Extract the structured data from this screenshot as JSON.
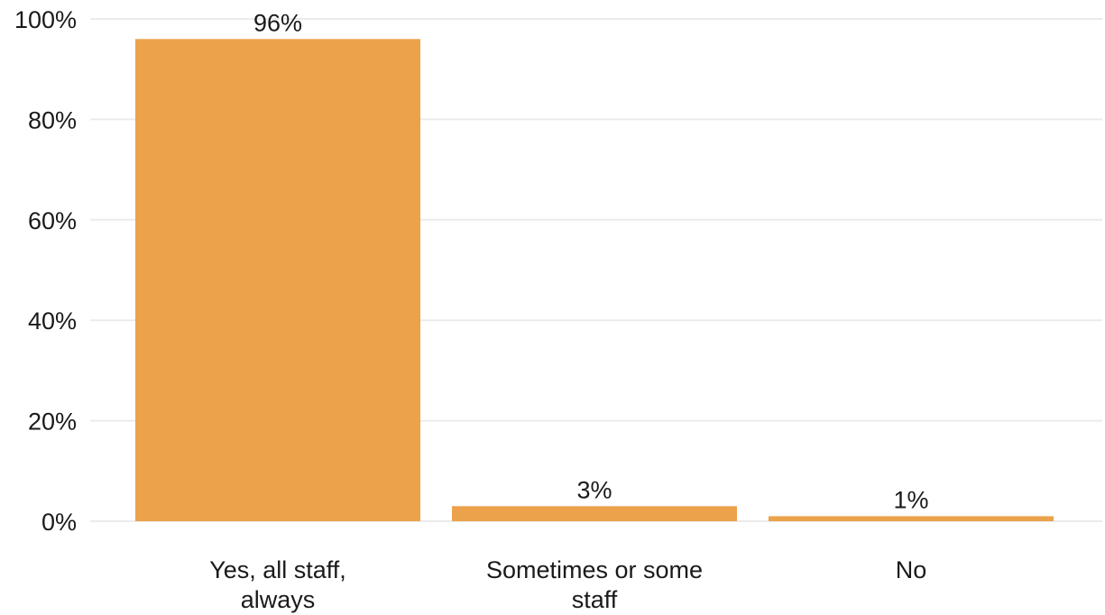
{
  "chart_data": {
    "type": "bar",
    "categories": [
      [
        "Yes, all staff,",
        "always"
      ],
      [
        "Sometimes or some",
        "staff"
      ],
      [
        "No"
      ]
    ],
    "values": [
      96,
      3,
      1
    ],
    "data_labels": [
      "96%",
      "3%",
      "1%"
    ],
    "ylim": [
      0,
      100
    ],
    "yticks": [
      0,
      20,
      40,
      60,
      80,
      100
    ],
    "ytick_labels": [
      "0%",
      "20%",
      "40%",
      "60%",
      "80%",
      "100%"
    ],
    "grid": true,
    "bar_color": "#eca24b"
  }
}
